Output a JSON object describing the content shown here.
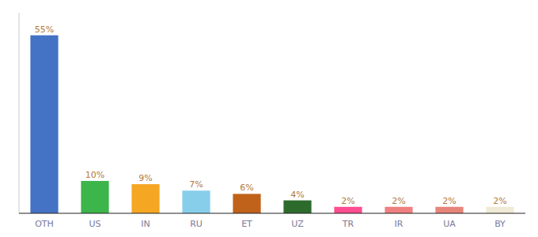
{
  "chart_data": {
    "type": "bar",
    "categories": [
      "OTH",
      "US",
      "IN",
      "RU",
      "ET",
      "UZ",
      "TR",
      "IR",
      "UA",
      "BY"
    ],
    "values": [
      55,
      10,
      9,
      7,
      6,
      4,
      2,
      2,
      2,
      2
    ],
    "value_labels": [
      "55%",
      "10%",
      "9%",
      "7%",
      "6%",
      "4%",
      "2%",
      "2%",
      "2%",
      "2%"
    ],
    "colors": [
      "#4472c4",
      "#3cb54a",
      "#f5a623",
      "#87ceeb",
      "#c0621a",
      "#2d6b2d",
      "#ff4d8f",
      "#f08080",
      "#e8857a",
      "#f0ead6"
    ],
    "ylim": [
      0,
      62
    ],
    "data_labels": true,
    "tick_labels": "x",
    "grid": false
  }
}
